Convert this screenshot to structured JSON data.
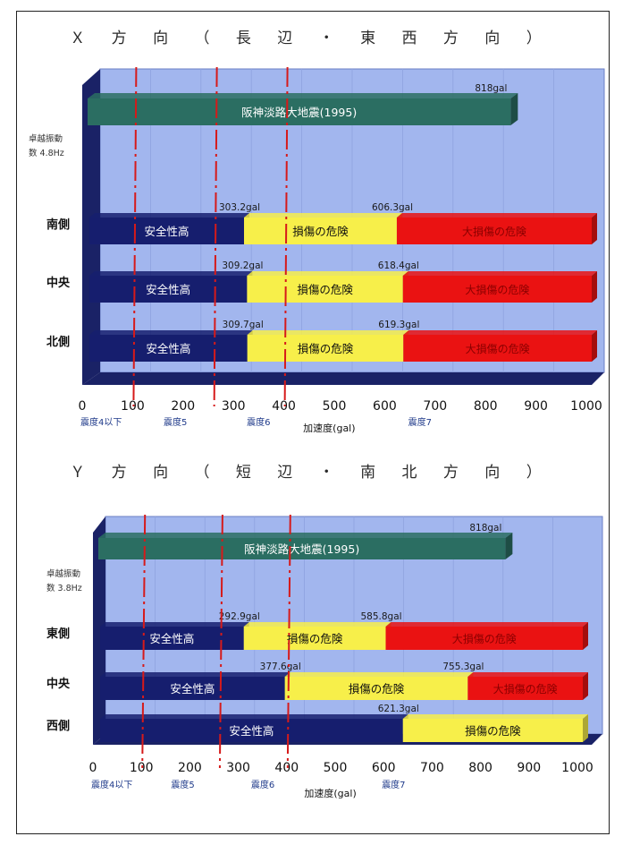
{
  "colors": {
    "wall": "#a2b6ee",
    "floor": "#1a2266",
    "safe": "#161e6e",
    "caution": "#f7ef4a",
    "danger": "#ea1212",
    "ref": "#2b6e62",
    "guide": "#d61a1a"
  },
  "chart_data": [
    {
      "type": "bar",
      "orientation": "horizontal-stacked",
      "title": "Ｘ 方 向 （ 長 辺 ・ 東 西 方 向 ）",
      "xlabel": "加速度(gal)",
      "xlim": [
        0,
        1000
      ],
      "xticks": [
        "0",
        "100",
        "200",
        "300",
        "400",
        "500",
        "600",
        "700",
        "800",
        "900",
        "1000"
      ],
      "intensity_labels": [
        {
          "text": "震度4以下",
          "at": 0
        },
        {
          "text": "震度5",
          "at": 165
        },
        {
          "text": "震度6",
          "at": 330
        },
        {
          "text": "震度7",
          "at": 650
        }
      ],
      "guides": [
        100,
        260,
        400
      ],
      "side_note": [
        "卓越振動",
        "数 4.8Hz"
      ],
      "reference": {
        "label": "阪神淡路大地震(1995)",
        "value": 818,
        "value_label": "818gal"
      },
      "rows": [
        {
          "name": "南側",
          "t1": 303.2,
          "t2": 606.3,
          "t1_label": "303.2gal",
          "t2_label": "606.3gal",
          "segments": [
            "安全性高",
            "損傷の危険",
            "大損傷の危険"
          ]
        },
        {
          "name": "中央",
          "t1": 309.2,
          "t2": 618.4,
          "t1_label": "309.2gal",
          "t2_label": "618.4gal",
          "segments": [
            "安全性高",
            "損傷の危険",
            "大損傷の危険"
          ]
        },
        {
          "name": "北側",
          "t1": 309.7,
          "t2": 619.3,
          "t1_label": "309.7gal",
          "t2_label": "619.3gal",
          "segments": [
            "安全性高",
            "損傷の危険",
            "大損傷の危険"
          ]
        }
      ]
    },
    {
      "type": "bar",
      "orientation": "horizontal-stacked",
      "title": "Ｙ 方 向 （ 短 辺 ・ 南 北 方 向 ）",
      "xlabel": "加速度(gal)",
      "xlim": [
        0,
        1000
      ],
      "xticks": [
        "0",
        "100",
        "200",
        "300",
        "400",
        "500",
        "600",
        "700",
        "800",
        "900",
        "1000"
      ],
      "intensity_labels": [
        {
          "text": "震度4以下",
          "at": 0
        },
        {
          "text": "震度5",
          "at": 165
        },
        {
          "text": "震度6",
          "at": 330
        },
        {
          "text": "震度7",
          "at": 600
        }
      ],
      "guides": [
        100,
        260,
        400
      ],
      "side_note": [
        "卓越振動",
        "数 3.8Hz"
      ],
      "reference": {
        "label": "阪神淡路大地震(1995)",
        "value": 818,
        "value_label": "818gal"
      },
      "rows": [
        {
          "name": "東側",
          "t1": 292.9,
          "t2": 585.8,
          "t1_label": "292.9gal",
          "t2_label": "585.8gal",
          "segments": [
            "安全性高",
            "損傷の危険",
            "大損傷の危険"
          ]
        },
        {
          "name": "中央",
          "t1": 377.6,
          "t2": 755.3,
          "t1_label": "377.6gal",
          "t2_label": "755.3gal",
          "segments": [
            "安全性高",
            "損傷の危険",
            "大損傷の危険"
          ]
        },
        {
          "name": "西側",
          "t1": 621.3,
          "t2": null,
          "t1_label": "621.3gal",
          "t2_label": "",
          "segments": [
            "安全性高",
            "損傷の危険"
          ]
        }
      ]
    }
  ]
}
